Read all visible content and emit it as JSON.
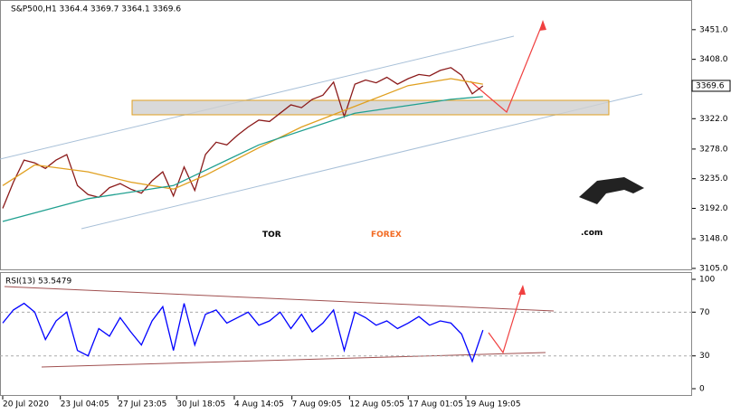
{
  "chart_data": [
    {
      "type": "line",
      "title": "S&P500,H1 3364.4 3369.7 3364.1 3369.6",
      "xlim": [
        0,
        64.6
      ],
      "xticks": [
        {
          "value": 0,
          "label": "20 Jul 2020"
        },
        {
          "value": 5.4,
          "label": "23 Jul 04:05"
        },
        {
          "value": 10.8,
          "label": "27 Jul 23:05"
        },
        {
          "value": 16.3,
          "label": "30 Jul 18:05"
        },
        {
          "value": 21.7,
          "label": "4 Aug 14:05"
        },
        {
          "value": 27.1,
          "label": "7 Aug 09:05"
        },
        {
          "value": 32.5,
          "label": "12 Aug 05:05"
        },
        {
          "value": 38,
          "label": "17 Aug 01:05"
        },
        {
          "value": 43.4,
          "label": "19 Aug 19:05"
        }
      ],
      "ylim": [
        3101,
        3494
      ],
      "yticks": [
        {
          "value": 3451,
          "label": "3451.0"
        },
        {
          "value": 3408,
          "label": "3408.0"
        },
        {
          "value": 3322,
          "label": "3322.0"
        },
        {
          "value": 3278,
          "label": "3278.0"
        },
        {
          "value": 3235,
          "label": "3235.0"
        },
        {
          "value": 3192,
          "label": "3192.0"
        },
        {
          "value": 3148,
          "label": "3148.0"
        },
        {
          "value": 3105,
          "label": "3105.0"
        }
      ],
      "series": [
        {
          "color": "#8b1a1a",
          "x": [
            0,
            1,
            2,
            3,
            4,
            5,
            6,
            7,
            8,
            9,
            10,
            11,
            12,
            13,
            14,
            15,
            16,
            17,
            18,
            19,
            20,
            21,
            22,
            23,
            24,
            25,
            26,
            27,
            28,
            29,
            30,
            31,
            32,
            33,
            34,
            35,
            36,
            37,
            38,
            39,
            40,
            41,
            42,
            43,
            44,
            45
          ],
          "values": [
            3192,
            3230,
            3262,
            3258,
            3250,
            3262,
            3270,
            3225,
            3212,
            3208,
            3222,
            3228,
            3220,
            3214,
            3232,
            3245,
            3210,
            3252,
            3218,
            3270,
            3288,
            3284,
            3298,
            3310,
            3320,
            3318,
            3330,
            3342,
            3338,
            3350,
            3356,
            3375,
            3325,
            3372,
            3378,
            3374,
            3382,
            3372,
            3380,
            3386,
            3384,
            3392,
            3396,
            3385,
            3358,
            3369.6
          ]
        },
        {
          "color": "#e0a020",
          "x": [
            0,
            3,
            8,
            12,
            16,
            19,
            24,
            28,
            33,
            38,
            42,
            45
          ],
          "values": [
            3225,
            3255,
            3245,
            3230,
            3220,
            3240,
            3280,
            3310,
            3340,
            3370,
            3380,
            3372
          ]
        },
        {
          "color": "#20a090",
          "x": [
            0,
            8,
            16,
            24,
            33,
            42,
            45
          ],
          "values": [
            3173,
            3206,
            3225,
            3284,
            3330,
            3350,
            3354
          ]
        }
      ]
    },
    {
      "type": "line",
      "title": "RSI(13) 53.5479",
      "xlim": [
        0,
        64.6
      ],
      "ylim": [
        -6.6,
        105.8
      ],
      "yticks": [
        0,
        30,
        70,
        100
      ],
      "levels": [
        30,
        70
      ],
      "series": [
        {
          "color": "#0000ff",
          "x": [
            0,
            1,
            2,
            3,
            4,
            5,
            6,
            7,
            8,
            9,
            10,
            11,
            12,
            13,
            14,
            15,
            16,
            17,
            18,
            19,
            20,
            21,
            22,
            23,
            24,
            25,
            26,
            27,
            28,
            29,
            30,
            31,
            32,
            33,
            34,
            35,
            36,
            37,
            38,
            39,
            40,
            41,
            42,
            43,
            44,
            45
          ],
          "values": [
            60,
            72,
            78,
            70,
            45,
            62,
            70,
            35,
            30,
            55,
            48,
            65,
            52,
            40,
            62,
            75,
            35,
            78,
            40,
            68,
            72,
            60,
            65,
            70,
            58,
            62,
            70,
            55,
            68,
            52,
            60,
            72,
            35,
            70,
            65,
            58,
            62,
            55,
            60,
            66,
            58,
            62,
            60,
            50,
            25,
            53.5479
          ]
        }
      ]
    }
  ],
  "watermark": {
    "part1": "TOR",
    "part2": "FOREX",
    "part3": ".com"
  }
}
